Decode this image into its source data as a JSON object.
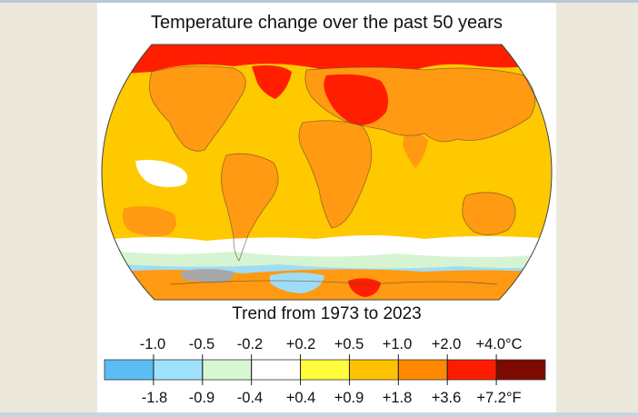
{
  "title": "Temperature change over the past 50 years",
  "subtitle": "Trend from 1973 to 2023",
  "legend": {
    "celsius_ticks": [
      "-1.0",
      "-0.5",
      "-0.2",
      "+0.2",
      "+0.5",
      "+1.0",
      "+2.0",
      "+4.0°C"
    ],
    "fahrenheit_ticks": [
      "-1.8",
      "-0.9",
      "-0.4",
      "+0.4",
      "+0.9",
      "+1.8",
      "+3.6",
      "+7.2°F"
    ],
    "colors": [
      "#5bbdf5",
      "#9fe2fb",
      "#d7f7d3",
      "#ffffff",
      "#fffd3c",
      "#ffc200",
      "#ff8a00",
      "#ff1b00",
      "#7d0a00"
    ]
  },
  "map_colors": {
    "ocean_warm": "#ffc900",
    "land_warm": "#ff9a12",
    "arctic": "#ff1e00",
    "neutral": "#ffffff",
    "cool": "#d6f4d2",
    "cold": "#9fdcf6",
    "nodata": "#a8a8a8"
  }
}
